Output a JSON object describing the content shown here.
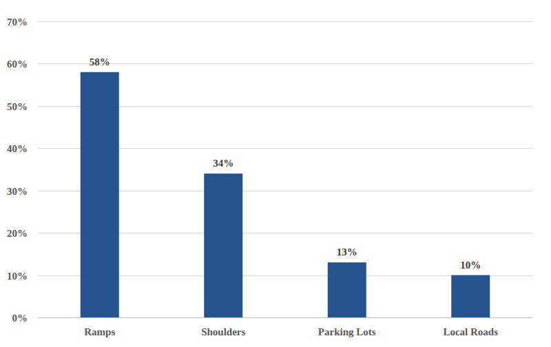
{
  "chart_data": {
    "type": "bar",
    "categories": [
      "Ramps",
      "Shoulders",
      "Parking Lots",
      "Local Roads"
    ],
    "values": [
      58,
      34,
      13,
      10
    ],
    "value_labels": [
      "58%",
      "34%",
      "13%",
      "10%"
    ],
    "color": "#24538f",
    "ylim": [
      0,
      70
    ],
    "yticks": [
      {
        "value": 0,
        "label": "0%"
      },
      {
        "value": 10,
        "label": "10%"
      },
      {
        "value": 20,
        "label": "20%"
      },
      {
        "value": 30,
        "label": "30%"
      },
      {
        "value": 40,
        "label": "40%"
      },
      {
        "value": 50,
        "label": "50%"
      },
      {
        "value": 60,
        "label": "60%"
      },
      {
        "value": 70,
        "label": "70%"
      }
    ],
    "grid": true,
    "data_labels": true
  }
}
